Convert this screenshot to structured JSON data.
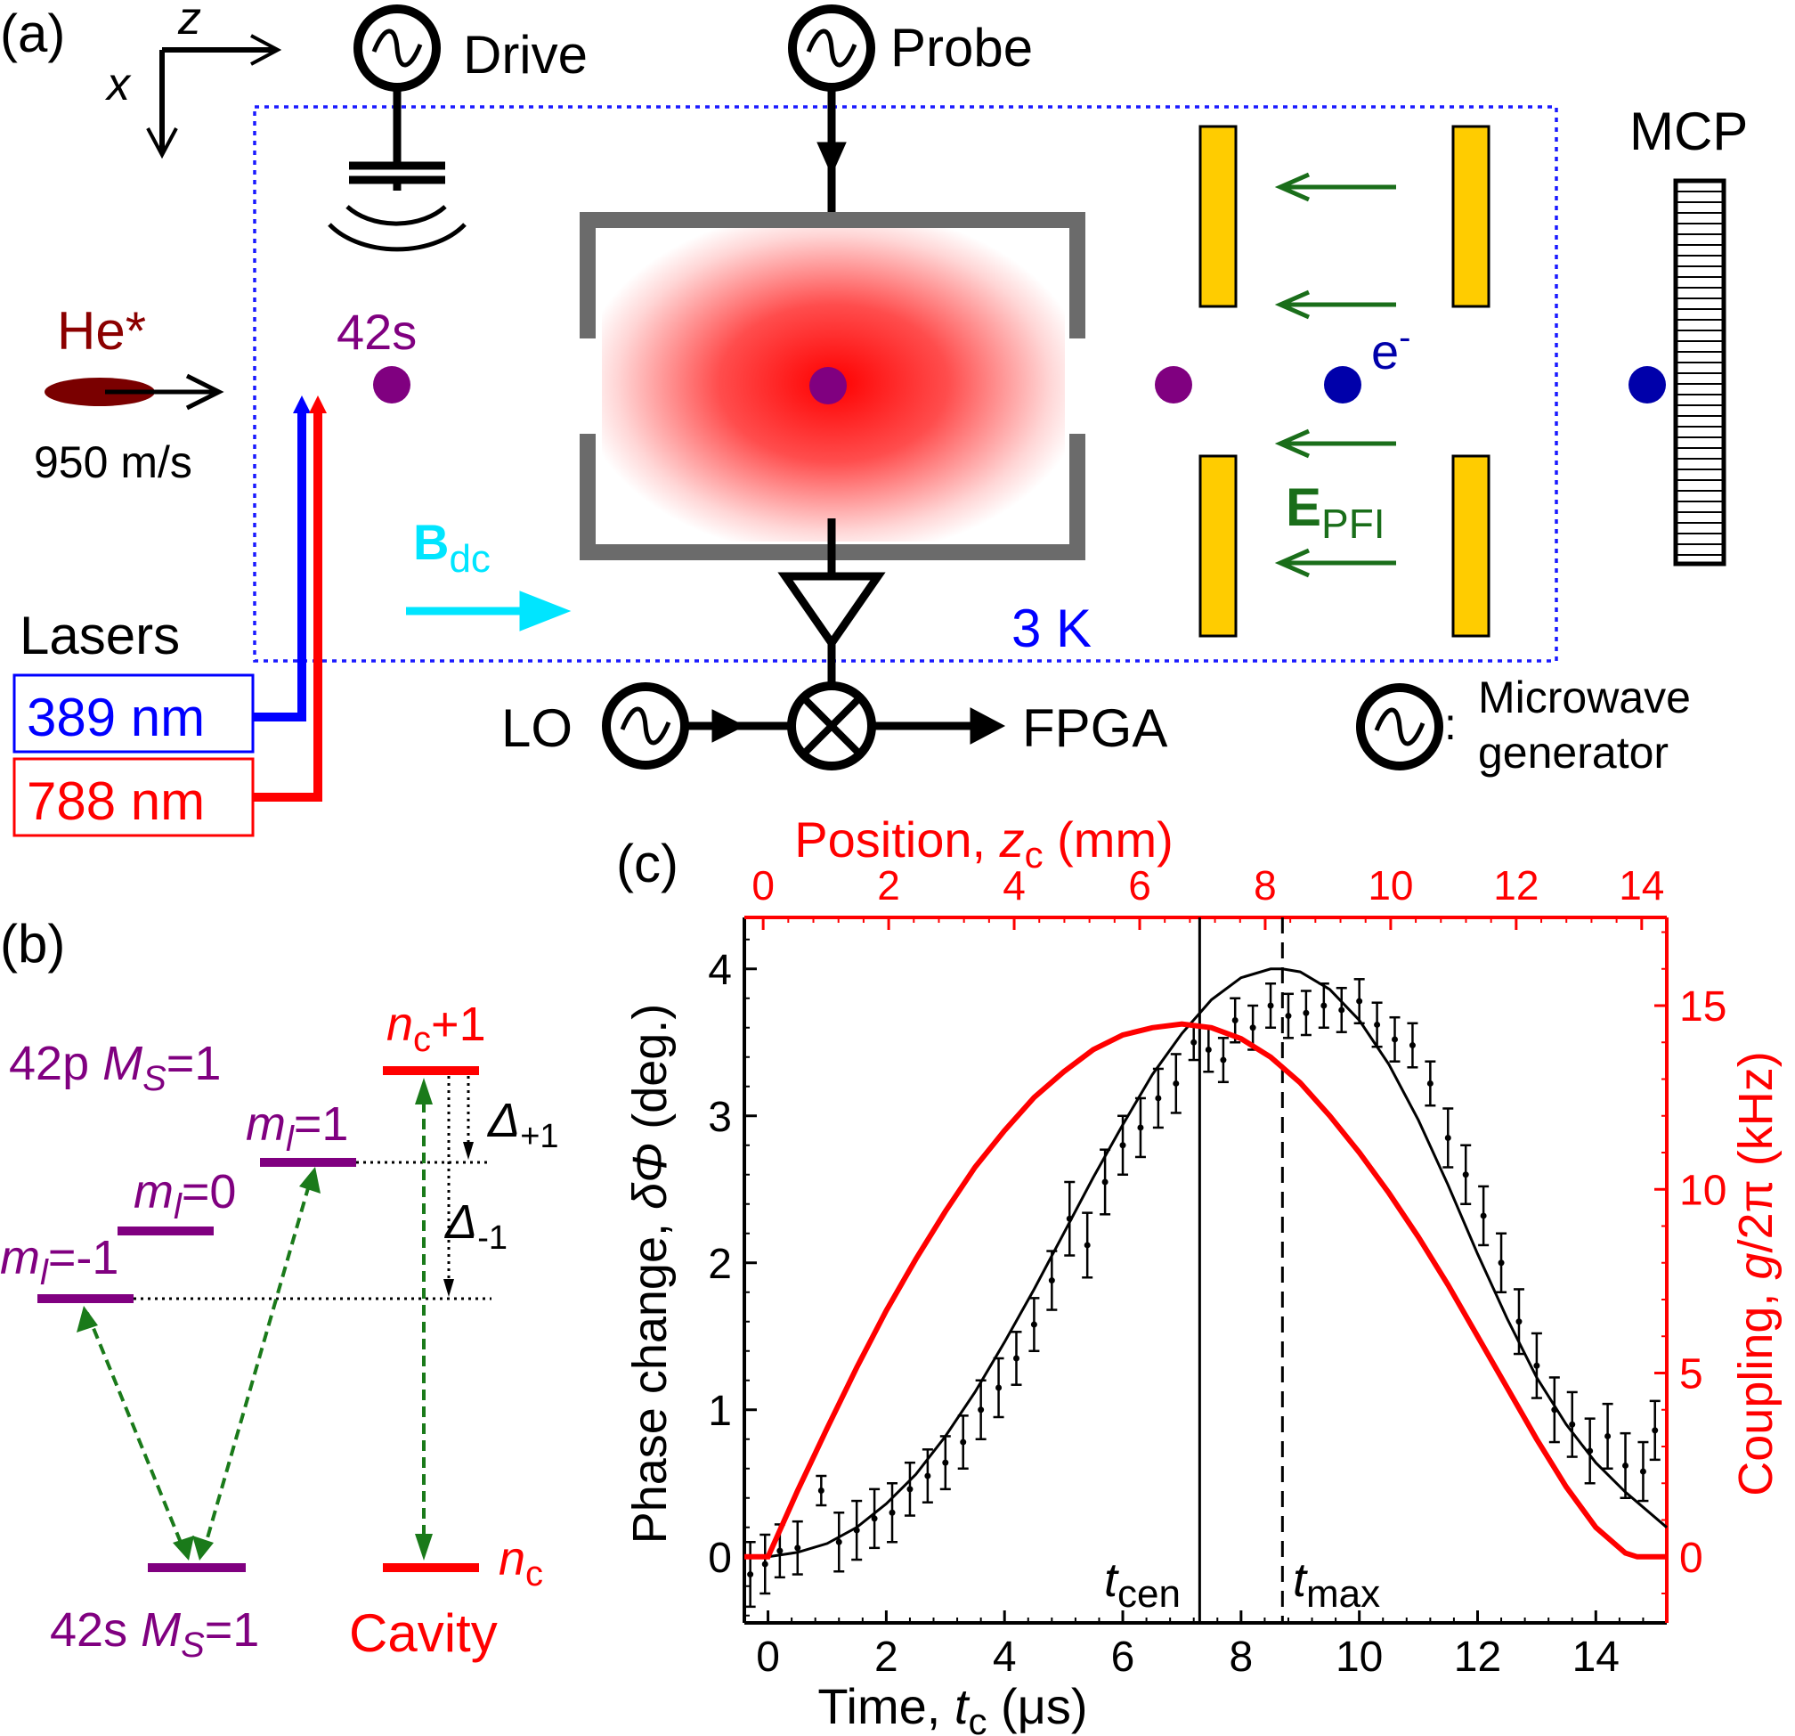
{
  "panel_a": {
    "label": "(a)",
    "axis_z": "z",
    "axis_x": "x",
    "drive": "Drive",
    "probe": "Probe",
    "mcp": "MCP",
    "he": "He*",
    "speed": "950 m/s",
    "state_42s": "42s",
    "electron": "e",
    "electron_sup": "-",
    "epfi_main": "E",
    "epfi_sub": "PFI",
    "bdc_main": "B",
    "bdc_sub": "dc",
    "temp": "3 K",
    "lasers": "Lasers",
    "laser_389": "389 nm",
    "laser_788": "788 nm",
    "lo": "LO",
    "fpga": "FPGA",
    "legend_colon": ":",
    "legend_line1": "Microwave",
    "legend_line2": "generator",
    "colors": {
      "laser_389": "#0000ff",
      "laser_788": "#ff0000",
      "bdc": "#00e5ff",
      "field": "#1a6e1a",
      "plates": "#ffcc00",
      "rydberg": "#800080",
      "electron": "#0000aa"
    }
  },
  "panel_b": {
    "label": "(b)",
    "p_state_prefix": "42p ",
    "p_state_M": "M",
    "p_state_S": "S",
    "p_state_suffix": "=1",
    "ml_m": "m",
    "ml_l": "l",
    "ml_plus": "=1",
    "ml_zero": "=0",
    "ml_minus": "=-1",
    "nc_plus_n": "n",
    "nc_plus_c": "c",
    "nc_plus_suffix": "+1",
    "delta_plus_sym": "Δ",
    "delta_plus_sub": "+1",
    "delta_minus_sym": "Δ",
    "delta_minus_sub": "-1",
    "s_state_prefix": "42s ",
    "s_state_M": "M",
    "s_state_S": "S",
    "s_state_suffix": "=1",
    "nc_n": "n",
    "nc_c": "c",
    "cavity": "Cavity"
  },
  "panel_c": {
    "label": "(c)",
    "top_axis_label": "Position, ",
    "top_axis_var": "z",
    "top_axis_sub": "c",
    "top_axis_unit": " (mm)",
    "left_axis_label": "Phase change, ",
    "left_axis_var": "δΦ",
    "left_axis_unit": " (deg.)",
    "right_axis_label": "Coupling, ",
    "right_axis_var": "g",
    "right_axis_unit": "/2π (kHz)",
    "bottom_axis_label": "Time, ",
    "bottom_axis_var": "t",
    "bottom_axis_sub": "c",
    "bottom_axis_unit": " (μs)",
    "t_cen_t": "t",
    "t_cen_sub": "cen",
    "t_max_t": "t",
    "t_max_sub": "max"
  },
  "chart_data": {
    "type": "scatter",
    "x": {
      "label": "Time, t_c (μs)",
      "lim": [
        -0.4,
        15.2
      ],
      "ticks": [
        0,
        2,
        4,
        6,
        8,
        10,
        12,
        14
      ]
    },
    "y": {
      "label": "Phase change, δΦ (deg.)",
      "lim": [
        -0.45,
        4.35
      ],
      "ticks": [
        0,
        1,
        2,
        3,
        4
      ]
    },
    "x_top": {
      "label": "Position, z_c (mm)",
      "lim": [
        -0.3,
        14.4
      ],
      "ticks": [
        0,
        2,
        4,
        6,
        8,
        10,
        12,
        14
      ]
    },
    "y_right": {
      "label": "Coupling, g/2π (kHz)",
      "lim": [
        -1.8,
        17.4
      ],
      "ticks": [
        0,
        5,
        10,
        15
      ]
    },
    "vlines": [
      {
        "name": "t_cen",
        "x": 7.3,
        "style": "solid"
      },
      {
        "name": "t_max",
        "x": 8.7,
        "style": "dashed"
      }
    ],
    "series": [
      {
        "name": "measured phase",
        "kind": "errorbar",
        "color": "#000000",
        "points": [
          [
            -0.3,
            -0.12,
            0.22
          ],
          [
            -0.05,
            -0.05,
            0.2
          ],
          [
            0.2,
            0.04,
            0.18
          ],
          [
            0.5,
            0.06,
            0.18
          ],
          [
            0.9,
            0.45,
            0.1
          ],
          [
            1.2,
            0.1,
            0.2
          ],
          [
            1.5,
            0.18,
            0.2
          ],
          [
            1.8,
            0.26,
            0.2
          ],
          [
            2.1,
            0.3,
            0.2
          ],
          [
            2.4,
            0.46,
            0.18
          ],
          [
            2.7,
            0.55,
            0.18
          ],
          [
            3.0,
            0.64,
            0.18
          ],
          [
            3.3,
            0.78,
            0.18
          ],
          [
            3.6,
            1.0,
            0.2
          ],
          [
            3.9,
            1.15,
            0.2
          ],
          [
            4.2,
            1.35,
            0.18
          ],
          [
            4.5,
            1.58,
            0.18
          ],
          [
            4.8,
            1.88,
            0.2
          ],
          [
            5.1,
            2.3,
            0.25
          ],
          [
            5.4,
            2.12,
            0.22
          ],
          [
            5.7,
            2.55,
            0.22
          ],
          [
            6.0,
            2.8,
            0.2
          ],
          [
            6.3,
            2.92,
            0.2
          ],
          [
            6.6,
            3.12,
            0.2
          ],
          [
            6.9,
            3.22,
            0.2
          ],
          [
            7.2,
            3.5,
            0.12
          ],
          [
            7.45,
            3.45,
            0.15
          ],
          [
            7.7,
            3.38,
            0.15
          ],
          [
            7.9,
            3.65,
            0.15
          ],
          [
            8.2,
            3.6,
            0.15
          ],
          [
            8.5,
            3.75,
            0.15
          ],
          [
            8.8,
            3.68,
            0.15
          ],
          [
            9.1,
            3.7,
            0.15
          ],
          [
            9.4,
            3.75,
            0.15
          ],
          [
            9.7,
            3.72,
            0.15
          ],
          [
            10.0,
            3.78,
            0.15
          ],
          [
            10.3,
            3.62,
            0.15
          ],
          [
            10.6,
            3.52,
            0.15
          ],
          [
            10.9,
            3.48,
            0.15
          ],
          [
            11.2,
            3.22,
            0.15
          ],
          [
            11.5,
            2.85,
            0.2
          ],
          [
            11.8,
            2.6,
            0.2
          ],
          [
            12.1,
            2.32,
            0.2
          ],
          [
            12.4,
            2.0,
            0.2
          ],
          [
            12.7,
            1.6,
            0.22
          ],
          [
            13.0,
            1.3,
            0.22
          ],
          [
            13.3,
            1.0,
            0.22
          ],
          [
            13.6,
            0.9,
            0.22
          ],
          [
            13.9,
            0.72,
            0.22
          ],
          [
            14.2,
            0.82,
            0.22
          ],
          [
            14.5,
            0.62,
            0.22
          ],
          [
            14.8,
            0.58,
            0.2
          ],
          [
            15.0,
            0.86,
            0.2
          ]
        ]
      },
      {
        "name": "phase fit",
        "kind": "line",
        "color": "#000000",
        "x": [
          -0.4,
          0,
          0.5,
          1,
          1.5,
          2,
          2.5,
          3,
          3.5,
          4,
          4.5,
          5,
          5.5,
          6,
          6.5,
          7,
          7.5,
          8,
          8.5,
          8.7,
          9,
          9.5,
          10,
          10.5,
          11,
          11.5,
          12,
          12.5,
          13,
          13.5,
          14,
          14.5,
          15.2
        ],
        "y": [
          0.0,
          0.0,
          0.03,
          0.09,
          0.2,
          0.36,
          0.56,
          0.82,
          1.12,
          1.46,
          1.82,
          2.2,
          2.58,
          2.94,
          3.28,
          3.56,
          3.79,
          3.94,
          4.0,
          4.0,
          3.98,
          3.86,
          3.65,
          3.35,
          2.97,
          2.53,
          2.06,
          1.62,
          1.22,
          0.9,
          0.64,
          0.44,
          0.2
        ]
      },
      {
        "name": "coupling",
        "kind": "line",
        "color": "#ff0000",
        "axis": "right",
        "x": [
          -0.4,
          0,
          0.5,
          1,
          1.5,
          2,
          2.5,
          3,
          3.5,
          4,
          4.5,
          5,
          5.5,
          6,
          6.5,
          7,
          7.5,
          8,
          8.5,
          9,
          9.5,
          10,
          10.5,
          11,
          11.5,
          12,
          12.5,
          13,
          13.5,
          14,
          14.5,
          14.7,
          15.2
        ],
        "y": [
          0.0,
          0.0,
          1.8,
          3.5,
          5.15,
          6.7,
          8.1,
          9.4,
          10.6,
          11.6,
          12.5,
          13.2,
          13.8,
          14.2,
          14.4,
          14.5,
          14.4,
          14.1,
          13.6,
          12.9,
          12.0,
          11.0,
          9.9,
          8.7,
          7.4,
          6.0,
          4.6,
          3.2,
          1.9,
          0.8,
          0.1,
          0.0,
          0.0
        ]
      }
    ]
  }
}
